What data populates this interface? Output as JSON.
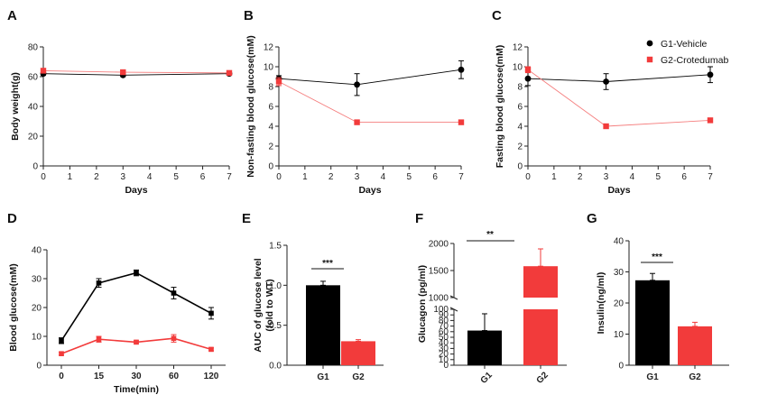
{
  "colors": {
    "g1": "#000000",
    "g2": "#f23b3b",
    "g2_light": "#f57e7e",
    "axis": "#222222"
  },
  "legend": {
    "items": [
      {
        "label": "G1-Vehicle",
        "color": "#000000",
        "marker": "circle"
      },
      {
        "label": "G2-Crotedumab",
        "color": "#f23b3b",
        "marker": "square"
      }
    ],
    "placement": "top-right"
  },
  "chart_data": [
    {
      "panel": "A",
      "type": "line",
      "ylabel": "Body weight(g)",
      "xlabel": "Days",
      "xlim": [
        0,
        7
      ],
      "xticks": [
        0,
        1,
        2,
        3,
        4,
        5,
        6,
        7
      ],
      "ylim": [
        0,
        80
      ],
      "yticks": [
        0,
        20,
        40,
        60,
        80
      ],
      "series": [
        {
          "name": "G1-Vehicle",
          "x": [
            0,
            3,
            7
          ],
          "y": [
            62,
            61,
            62
          ],
          "err": [
            1,
            1,
            1
          ]
        },
        {
          "name": "G2-Crotedumab",
          "x": [
            0,
            3,
            7
          ],
          "y": [
            64,
            63,
            62.5
          ],
          "err": [
            1,
            1,
            1
          ]
        }
      ]
    },
    {
      "panel": "B",
      "type": "line",
      "ylabel": "Non-fasting blood glucose(mM)",
      "xlabel": "Days",
      "xlim": [
        0,
        7
      ],
      "xticks": [
        0,
        1,
        2,
        3,
        4,
        5,
        6,
        7
      ],
      "ylim": [
        0,
        12
      ],
      "yticks": [
        0,
        2,
        4,
        6,
        8,
        10,
        12
      ],
      "series": [
        {
          "name": "G1-Vehicle",
          "x": [
            0,
            3,
            7
          ],
          "y": [
            8.8,
            8.2,
            9.7
          ],
          "err": [
            0.3,
            1.1,
            0.9
          ]
        },
        {
          "name": "G2-Crotedumab",
          "x": [
            0,
            3,
            7
          ],
          "y": [
            8.5,
            4.4,
            4.4
          ],
          "err": [
            0.4,
            0.2,
            0.2
          ]
        }
      ]
    },
    {
      "panel": "C",
      "type": "line",
      "ylabel": "Fasting blood glucose(mM)",
      "xlabel": "Days",
      "xlim": [
        0,
        7
      ],
      "xticks": [
        0,
        1,
        2,
        3,
        4,
        5,
        6,
        7
      ],
      "ylim": [
        0,
        12
      ],
      "yticks": [
        0,
        2,
        4,
        6,
        8,
        10,
        12
      ],
      "series": [
        {
          "name": "G1-Vehicle",
          "x": [
            0,
            3,
            7
          ],
          "y": [
            8.8,
            8.5,
            9.2
          ],
          "err": [
            0.7,
            0.8,
            0.8
          ]
        },
        {
          "name": "G2-Crotedumab",
          "x": [
            0,
            3,
            7
          ],
          "y": [
            9.7,
            4.0,
            4.6
          ],
          "err": [
            0.3,
            0.2,
            0.2
          ]
        }
      ]
    },
    {
      "panel": "D",
      "type": "line",
      "ylabel": "Blood glucose(mM)",
      "xlabel": "Time(min)",
      "categories": [
        "0",
        "15",
        "30",
        "60",
        "120"
      ],
      "ylim": [
        0,
        40
      ],
      "yticks": [
        0,
        10,
        20,
        30,
        40
      ],
      "series": [
        {
          "name": "G1-Vehicle",
          "values": [
            8.5,
            28.5,
            32,
            25,
            18
          ],
          "err": [
            1,
            1.5,
            1,
            2,
            2
          ]
        },
        {
          "name": "G2-Crotedumab",
          "values": [
            4,
            9,
            8,
            9.3,
            5.5
          ],
          "err": [
            0.5,
            1,
            0.5,
            1.3,
            0.5
          ]
        }
      ]
    },
    {
      "panel": "E",
      "type": "bar",
      "ylabel": "AUC of glucose level (fold to WT)",
      "categories": [
        "G1",
        "G2"
      ],
      "values": [
        1.0,
        0.3
      ],
      "err": [
        0.05,
        0.02
      ],
      "ylim": [
        0,
        1.5
      ],
      "yticks": [
        "0.0",
        "0.5",
        "1.0",
        "1.5"
      ],
      "significance": "***"
    },
    {
      "panel": "F",
      "type": "bar",
      "ylabel": "Glucagon (pg/ml)",
      "categories": [
        "G1",
        "G2"
      ],
      "values": [
        62,
        1580
      ],
      "err": [
        30,
        320
      ],
      "ylim": [
        0,
        2000
      ],
      "axis_break": [
        100,
        1000
      ],
      "yticks_lower": [
        0,
        10,
        20,
        30,
        40,
        50,
        60,
        70,
        80,
        90,
        100
      ],
      "yticks_upper": [
        1000,
        1500,
        2000
      ],
      "significance": "**"
    },
    {
      "panel": "G",
      "type": "bar",
      "ylabel": "Insulin(ng/ml)",
      "categories": [
        "G1",
        "G2"
      ],
      "values": [
        27.3,
        12.5
      ],
      "err": [
        2.2,
        1.3
      ],
      "ylim": [
        0,
        40
      ],
      "yticks": [
        0,
        10,
        20,
        30,
        40
      ],
      "significance": "***"
    }
  ]
}
